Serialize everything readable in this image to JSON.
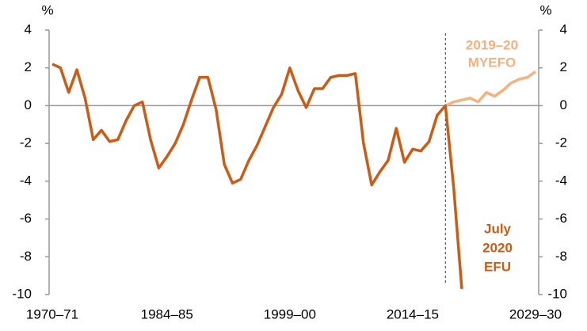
{
  "chart_data": {
    "type": "line",
    "y_axis_label": "%",
    "y2_axis_label": "%",
    "categories": [
      "1970–71",
      null,
      null,
      null,
      null,
      null,
      null,
      null,
      null,
      null,
      null,
      null,
      null,
      null,
      "1984–85",
      null,
      null,
      null,
      null,
      null,
      null,
      null,
      null,
      null,
      null,
      null,
      null,
      null,
      null,
      "1999–00",
      null,
      null,
      null,
      null,
      null,
      null,
      null,
      null,
      null,
      null,
      null,
      null,
      null,
      null,
      "2014–15",
      null,
      null,
      null,
      null,
      null,
      null,
      null,
      null,
      null,
      null,
      null,
      null,
      null,
      null,
      "2029–30"
    ],
    "series": [
      {
        "name": "July 2020 EFU",
        "color": "#cc5c14",
        "values": [
          2.2,
          2.0,
          0.7,
          1.9,
          0.4,
          -1.8,
          -1.3,
          -1.9,
          -1.8,
          -0.8,
          0.0,
          0.2,
          -1.8,
          -3.3,
          -2.7,
          -2.0,
          -1.0,
          0.3,
          1.5,
          1.5,
          -0.2,
          -3.1,
          -4.1,
          -3.9,
          -2.9,
          -2.1,
          -1.1,
          -0.1,
          0.6,
          2.0,
          0.8,
          -0.1,
          0.9,
          0.9,
          1.5,
          1.6,
          1.6,
          1.7,
          -2.0,
          -4.2,
          -3.5,
          -2.9,
          -1.2,
          -3.0,
          -2.3,
          -2.4,
          -1.9,
          -0.5,
          0.0,
          -4.3,
          -9.7,
          null,
          null,
          null,
          null,
          null,
          null,
          null,
          null,
          null
        ]
      },
      {
        "name": "2019–20 MYEFO",
        "color": "#f5b27e",
        "values": [
          null,
          null,
          null,
          null,
          null,
          null,
          null,
          null,
          null,
          null,
          null,
          null,
          null,
          null,
          null,
          null,
          null,
          null,
          null,
          null,
          null,
          null,
          null,
          null,
          null,
          null,
          null,
          null,
          null,
          null,
          null,
          null,
          null,
          null,
          null,
          null,
          null,
          null,
          null,
          null,
          null,
          null,
          null,
          null,
          null,
          null,
          null,
          null,
          0.0,
          0.2,
          0.3,
          0.4,
          0.2,
          0.7,
          0.5,
          0.8,
          1.2,
          1.4,
          1.5,
          1.8
        ]
      }
    ],
    "annotations": [
      {
        "lines": [
          "2019–20",
          "MYEFO"
        ],
        "color": "#f5b27e"
      },
      {
        "lines": [
          "July",
          "2020",
          "EFU"
        ],
        "color": "#cc5c14"
      }
    ],
    "ylim": [
      -10,
      4
    ],
    "yticks": [
      4,
      2,
      0,
      -2,
      -4,
      -6,
      -8,
      -10
    ],
    "y2lim": [
      -10,
      4
    ],
    "y2ticks": [
      4,
      2,
      0,
      -2,
      -4,
      -6,
      -8,
      -10
    ]
  }
}
